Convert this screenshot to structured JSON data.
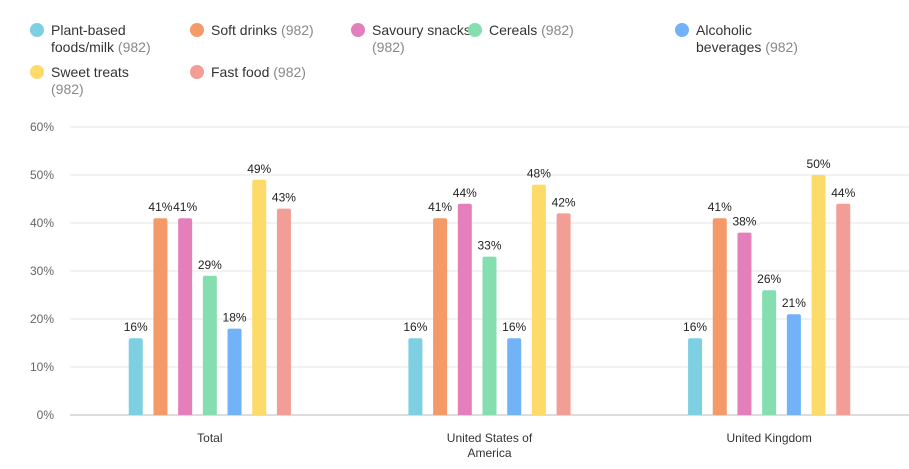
{
  "chart_data": {
    "type": "bar",
    "categories": [
      "Total",
      "United States of America",
      "United Kingdom"
    ],
    "category_lines": [
      [
        "Total"
      ],
      [
        "United States of",
        "America"
      ],
      [
        "United Kingdom"
      ]
    ],
    "series": [
      {
        "name": "Plant-based foods/milk",
        "lines": [
          "Plant-based",
          "foods/milk"
        ],
        "count": "(982)",
        "color": "#7fcfe3",
        "values": [
          16,
          16,
          16
        ]
      },
      {
        "name": "Soft drinks",
        "lines": [
          "Soft drinks"
        ],
        "count": "(982)",
        "color": "#f39a68",
        "values": [
          41,
          41,
          41
        ]
      },
      {
        "name": "Savoury snacks",
        "lines": [
          "Savoury snacks"
        ],
        "count": "(982)",
        "color": "#e57fbc",
        "values": [
          41,
          44,
          38
        ]
      },
      {
        "name": "Cereals",
        "lines": [
          "Cereals"
        ],
        "count": "(982)",
        "color": "#84deb0",
        "values": [
          29,
          33,
          26
        ]
      },
      {
        "name": "Alcoholic beverages",
        "lines": [
          "Alcoholic",
          "beverages"
        ],
        "count": "(982)",
        "color": "#72b3f8",
        "values": [
          18,
          16,
          21
        ]
      },
      {
        "name": "Sweet treats",
        "lines": [
          "Sweet treats"
        ],
        "count": "(982)",
        "color": "#fcdb6b",
        "values": [
          49,
          48,
          50
        ]
      },
      {
        "name": "Fast food",
        "lines": [
          "Fast food"
        ],
        "count": "(982)",
        "color": "#f29e96",
        "values": [
          43,
          42,
          44
        ]
      }
    ],
    "data_labels": [
      [
        "16%",
        "16%",
        "16%"
      ],
      [
        "41%",
        "41%",
        "41%"
      ],
      [
        "41%",
        "44%",
        "38%"
      ],
      [
        "29%",
        "33%",
        "26%"
      ],
      [
        "18%",
        "16%",
        "21%"
      ],
      [
        "49%",
        "48%",
        "50%"
      ],
      [
        "43%",
        "42%",
        "44%"
      ]
    ],
    "yticks": [
      "0%",
      "10%",
      "20%",
      "30%",
      "40%",
      "50%",
      "60%"
    ],
    "ylim": [
      0,
      60
    ],
    "grid": true,
    "legend": "top"
  }
}
